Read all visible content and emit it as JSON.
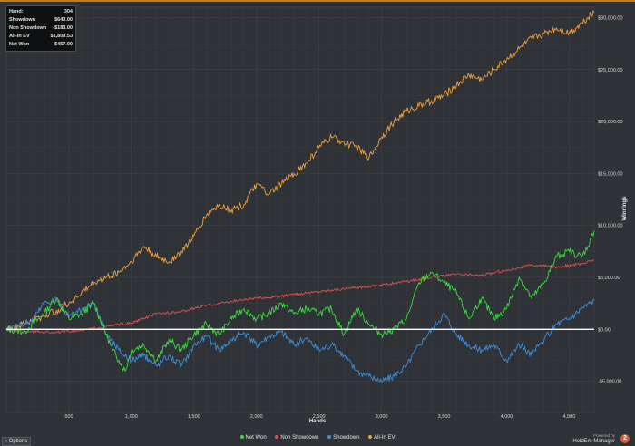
{
  "tooltip": [
    {
      "label": "Hand:",
      "value": "304"
    },
    {
      "label": "Showdown",
      "value": "$640.00"
    },
    {
      "label": "Non Showdown",
      "value": "-$183.00"
    },
    {
      "label": "All-In EV",
      "value": "$1,809.53"
    },
    {
      "label": "Net Won",
      "value": "$457.00"
    }
  ],
  "options_label": "Options",
  "brand": {
    "powered": "Powered by",
    "name": "HoldEm Manager",
    "badge": "2"
  },
  "colors": {
    "netwon": "#3ddc3d",
    "nonsd": "#e05050",
    "sd": "#3d8fdc",
    "ev": "#f0a040",
    "grid": "#44474c",
    "zero": "#ffffff"
  },
  "chart_data": {
    "type": "line",
    "xlabel": "Hands",
    "ylabel": "Winnings",
    "xlim": [
      0,
      4700
    ],
    "ylim": [
      -8000,
      31000
    ],
    "xticks": [
      500,
      1000,
      1500,
      2000,
      2500,
      3000,
      3500,
      4000,
      4500
    ],
    "xtick_labels": [
      "500",
      "1,000",
      "1,500",
      "2,000",
      "2,500",
      "3,000",
      "3,500",
      "4,000",
      "4,500"
    ],
    "yticks": [
      -5000,
      0,
      5000,
      10000,
      15000,
      20000,
      25000,
      30000
    ],
    "ytick_labels": [
      "-$5,000.00",
      "$0.00",
      "$5,000.00",
      "$10,000.00",
      "$15,000.00",
      "$20,000.00",
      "$25,000.00",
      "$30,000.00"
    ],
    "series": [
      {
        "name": "Net Won",
        "key": "netwon",
        "x": [
          0,
          150,
          300,
          400,
          500,
          600,
          700,
          800,
          850,
          900,
          950,
          1000,
          1100,
          1200,
          1300,
          1400,
          1500,
          1600,
          1700,
          1800,
          1900,
          2000,
          2100,
          2200,
          2300,
          2400,
          2500,
          2600,
          2700,
          2800,
          2900,
          3000,
          3100,
          3200,
          3300,
          3400,
          3500,
          3600,
          3700,
          3800,
          3900,
          4000,
          4100,
          4200,
          4300,
          4400,
          4500,
          4600,
          4650,
          4700
        ],
        "y": [
          0,
          -200,
          1500,
          3000,
          1000,
          1500,
          2500,
          -500,
          -2000,
          -3000,
          -4000,
          -2000,
          -1500,
          -3000,
          -1000,
          -2000,
          -500,
          500,
          -500,
          1000,
          2000,
          1000,
          1500,
          2500,
          1500,
          2000,
          1500,
          2000,
          -500,
          2000,
          500,
          -500,
          0,
          1000,
          4500,
          5500,
          4500,
          3500,
          1000,
          3000,
          1000,
          2000,
          5000,
          3000,
          4500,
          7000,
          7500,
          7000,
          8000,
          9500
        ]
      },
      {
        "name": "Non Showdown",
        "key": "nonsd",
        "x": [
          0,
          200,
          400,
          600,
          800,
          1000,
          1200,
          1400,
          1600,
          1800,
          2000,
          2200,
          2400,
          2600,
          2800,
          3000,
          3200,
          3400,
          3600,
          3800,
          4000,
          4200,
          4400,
          4600,
          4700
        ],
        "y": [
          0,
          -200,
          -300,
          -100,
          300,
          600,
          1500,
          1700,
          2300,
          2700,
          3000,
          3200,
          3500,
          3800,
          4000,
          4300,
          4600,
          5000,
          5300,
          5200,
          5700,
          6200,
          6000,
          6300,
          6700
        ]
      },
      {
        "name": "Showdown",
        "key": "sd",
        "x": [
          0,
          200,
          300,
          400,
          500,
          600,
          700,
          800,
          900,
          1000,
          1100,
          1200,
          1300,
          1400,
          1500,
          1600,
          1700,
          1800,
          1900,
          2000,
          2100,
          2200,
          2300,
          2400,
          2500,
          2600,
          2700,
          2800,
          2900,
          3000,
          3100,
          3200,
          3300,
          3400,
          3500,
          3600,
          3700,
          3800,
          3900,
          4000,
          4100,
          4200,
          4300,
          4400,
          4500,
          4600,
          4700
        ],
        "y": [
          0,
          800,
          2500,
          3000,
          1200,
          1800,
          2500,
          -500,
          -2000,
          -3000,
          -2500,
          -3500,
          -2500,
          -3500,
          -1500,
          -700,
          -2000,
          -1000,
          -300,
          -1500,
          -700,
          -200,
          -1500,
          -900,
          -2000,
          -1500,
          -2500,
          -4000,
          -4500,
          -5000,
          -4500,
          -3500,
          -1500,
          0,
          1500,
          -500,
          -1500,
          -2000,
          -1500,
          -3000,
          -1500,
          -2500,
          -1000,
          500,
          1000,
          2000,
          2800
        ]
      },
      {
        "name": "All-In EV",
        "key": "ev",
        "x": [
          0,
          200,
          400,
          500,
          600,
          700,
          800,
          900,
          1000,
          1100,
          1200,
          1300,
          1400,
          1500,
          1600,
          1700,
          1800,
          1900,
          2000,
          2100,
          2200,
          2300,
          2400,
          2500,
          2600,
          2700,
          2800,
          2900,
          3000,
          3100,
          3200,
          3300,
          3400,
          3500,
          3600,
          3700,
          3800,
          3900,
          4000,
          4100,
          4200,
          4300,
          4400,
          4500,
          4600,
          4650,
          4700
        ],
        "y": [
          0,
          800,
          1800,
          2500,
          3500,
          4500,
          5000,
          5500,
          6500,
          8000,
          7000,
          6500,
          7500,
          9000,
          11000,
          12000,
          11500,
          12000,
          14000,
          13000,
          14000,
          15000,
          16000,
          17500,
          18500,
          18000,
          17500,
          16500,
          18500,
          20000,
          21000,
          21500,
          22000,
          22500,
          23500,
          24500,
          24000,
          25000,
          26000,
          27000,
          28000,
          28500,
          29000,
          28500,
          29500,
          30000,
          30500
        ]
      }
    ]
  }
}
